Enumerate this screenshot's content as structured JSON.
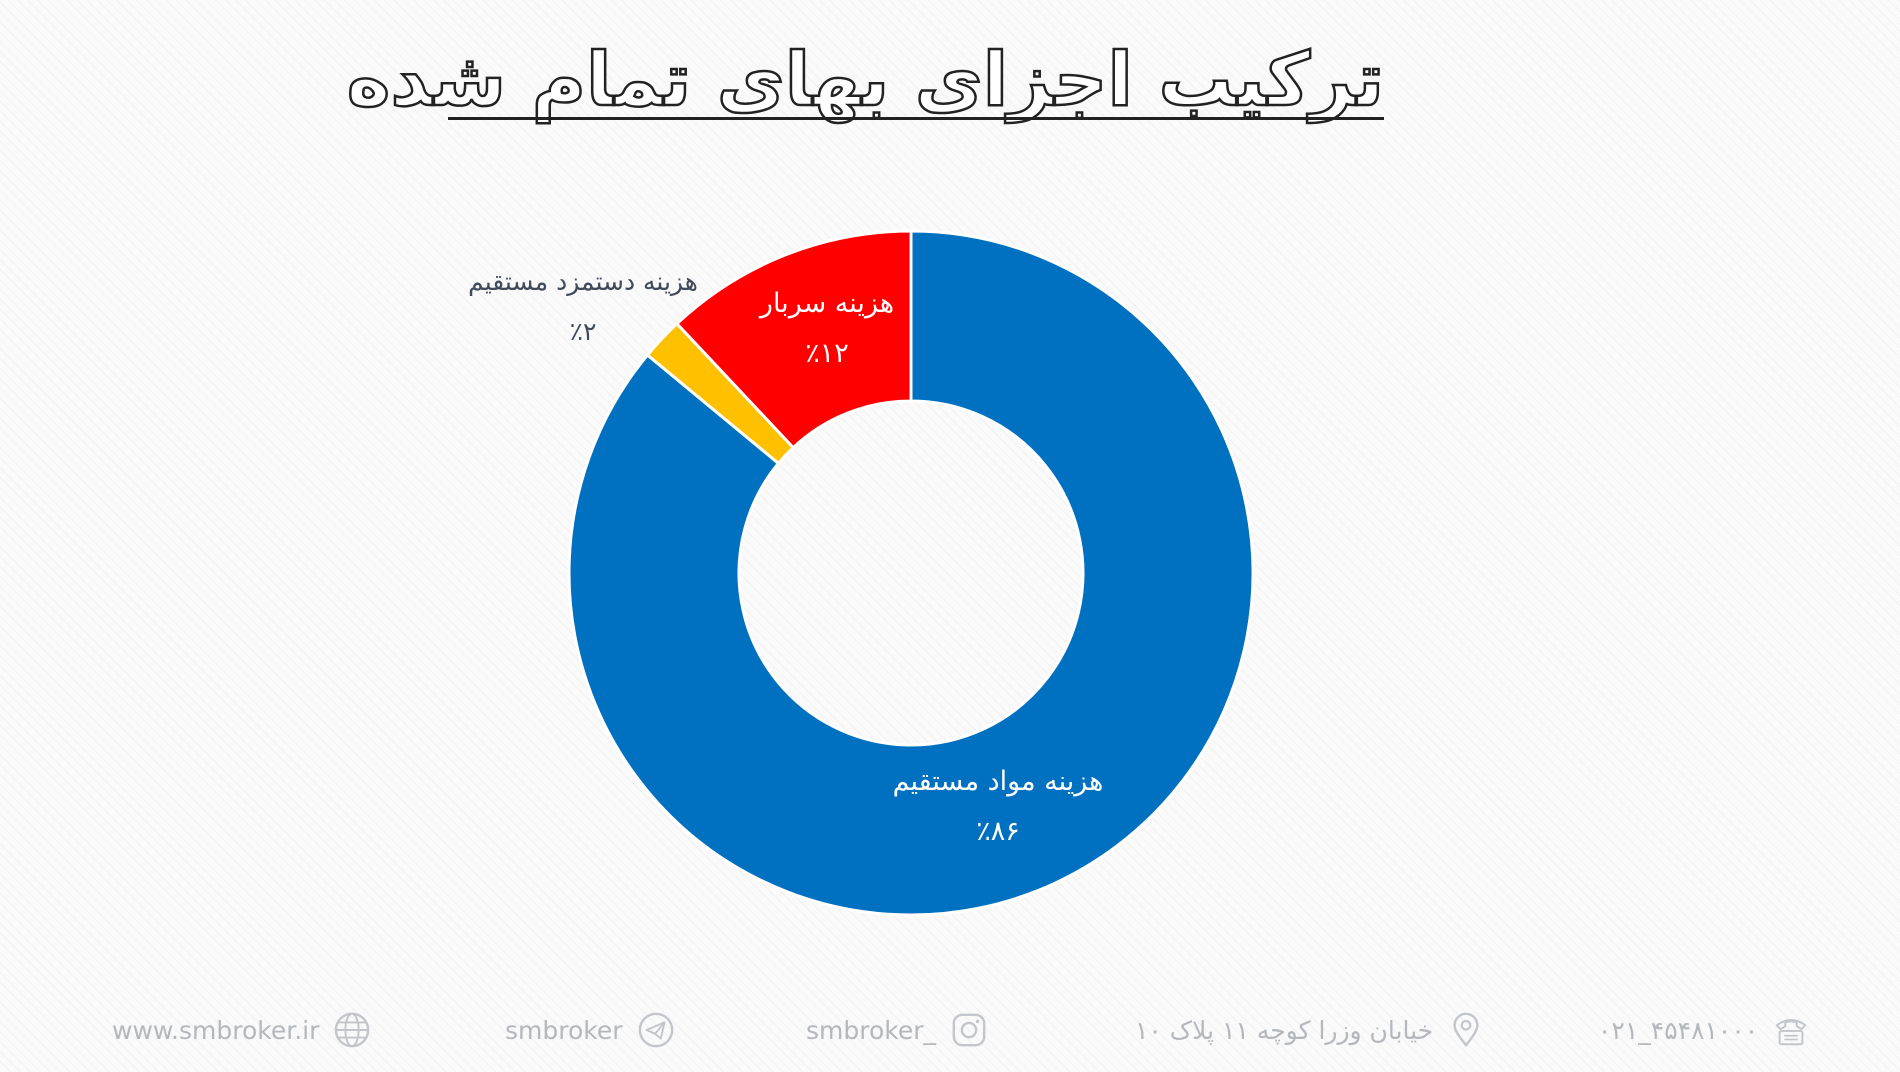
{
  "title": "ترکیب اجزای بهای تمام شده",
  "chart_data": {
    "type": "donut",
    "title": "ترکیب اجزای بهای تمام شده",
    "slices": [
      {
        "label": "هزینه مواد مستقیم",
        "value": 86,
        "value_label": "٪۸۶",
        "color": "#0070c0",
        "label_color": "#ffffff"
      },
      {
        "label": "هزینه دستمزد مستقیم",
        "value": 2,
        "value_label": "٪۲",
        "color": "#ffc000",
        "label_color": "#404a5a"
      },
      {
        "label": "هزینه سربار",
        "value": 12,
        "value_label": "٪۱۲",
        "color": "#ff0000",
        "label_color": "#ffffff"
      }
    ]
  },
  "footer": {
    "website": "www.smbroker.ir",
    "telegram": "smbroker",
    "instagram": "smbroker_",
    "address": "خیابان وزرا کوچه ۱۱ پلاک ۱۰",
    "phone": "۰۲۱_۴۵۴۸۱۰۰۰"
  },
  "icons": {
    "website": "globe-icon",
    "telegram": "telegram-icon",
    "instagram": "instagram-icon",
    "address": "location-pin-icon",
    "phone": "phone-icon"
  },
  "colors": {
    "footer_text": "#b4b8bc",
    "title_stroke": "#222222"
  }
}
